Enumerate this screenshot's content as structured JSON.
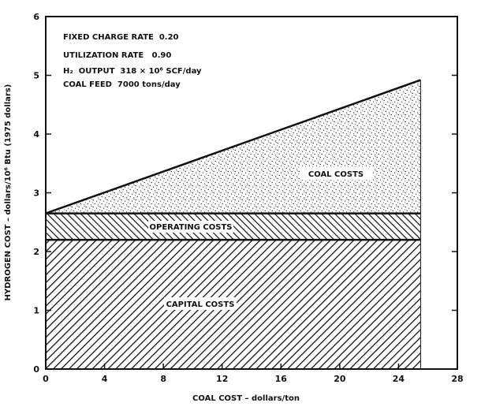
{
  "chart_data": {
    "type": "area",
    "xlabel": "COAL COST – dollars/ton",
    "ylabel": "HYDROGEN COST – dollars/10⁶ Btu (1975 dollars)",
    "xlim": [
      0,
      28
    ],
    "ylim": [
      0,
      6
    ],
    "xticks": [
      "0",
      "4",
      "8",
      "12",
      "16",
      "20",
      "24",
      "28"
    ],
    "yticks": [
      "0",
      "1",
      "2",
      "3",
      "4",
      "5",
      "6"
    ],
    "grid": false,
    "annotations": [
      "FIXED CHARGE RATE  0.20",
      "UTILIZATION RATE   0.90",
      "H₂  OUTPUT  318 × 10⁶ SCF/day",
      "COAL FEED  7000 tons/day"
    ],
    "x": [
      0,
      25.5
    ],
    "series": [
      {
        "name": "CAPITAL COSTS",
        "values": [
          2.2,
          2.2
        ]
      },
      {
        "name": "OPERATING COSTS",
        "values": [
          0.45,
          0.45
        ]
      },
      {
        "name": "COAL COSTS",
        "values": [
          0.0,
          2.27
        ]
      }
    ],
    "totals": [
      2.65,
      4.92
    ]
  }
}
